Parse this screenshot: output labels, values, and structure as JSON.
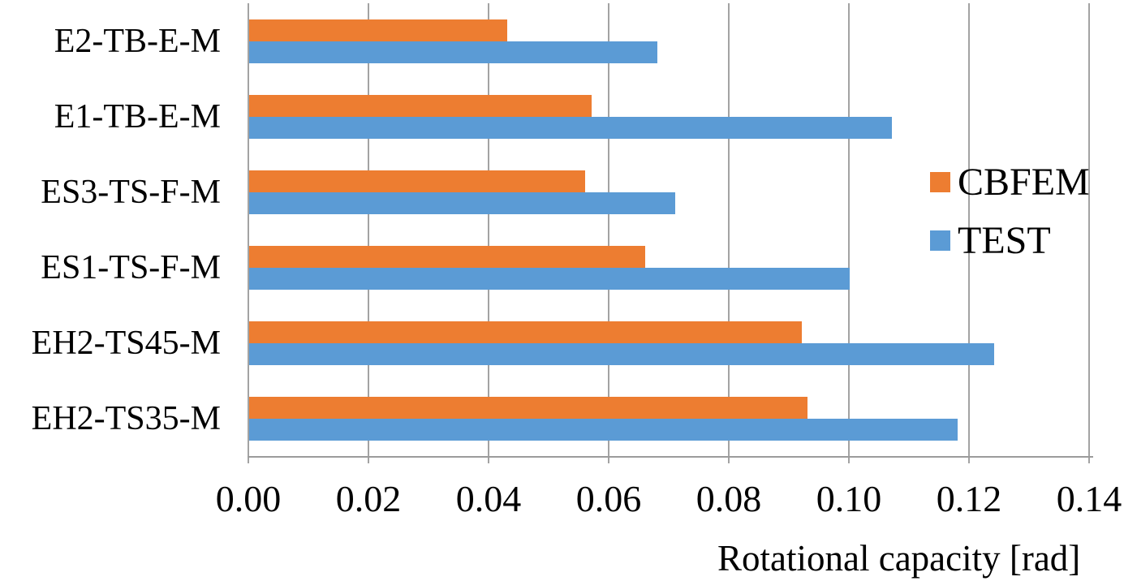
{
  "chart_data": {
    "type": "bar",
    "orientation": "horizontal",
    "title": "",
    "xlabel": "Rotational capacity [rad]",
    "ylabel": "",
    "categories": [
      "E2-TB-E-M",
      "E1-TB-E-M",
      "ES3-TS-F-M",
      "ES1-TS-F-M",
      "EH2-TS45-M",
      "EH2-TS35-M"
    ],
    "series": [
      {
        "name": "CBFEM",
        "color": "#ED7D31",
        "values": [
          0.043,
          0.057,
          0.056,
          0.066,
          0.092,
          0.093
        ]
      },
      {
        "name": "TEST",
        "color": "#5B9BD5",
        "values": [
          0.068,
          0.107,
          0.071,
          0.1,
          0.124,
          0.118
        ]
      }
    ],
    "xlim": [
      0.0,
      0.14
    ],
    "xticks": [
      0.0,
      0.02,
      0.04,
      0.06,
      0.08,
      0.1,
      0.12,
      0.14
    ],
    "xtick_labels": [
      "0.00",
      "0.02",
      "0.04",
      "0.06",
      "0.08",
      "0.10",
      "0.12",
      "0.14"
    ],
    "grid": "vertical-only",
    "legend_position": "right"
  },
  "colors": {
    "gridline": "#a3a3a3",
    "axis": "#9b9b9b",
    "text": "#000000",
    "background": "#ffffff"
  }
}
